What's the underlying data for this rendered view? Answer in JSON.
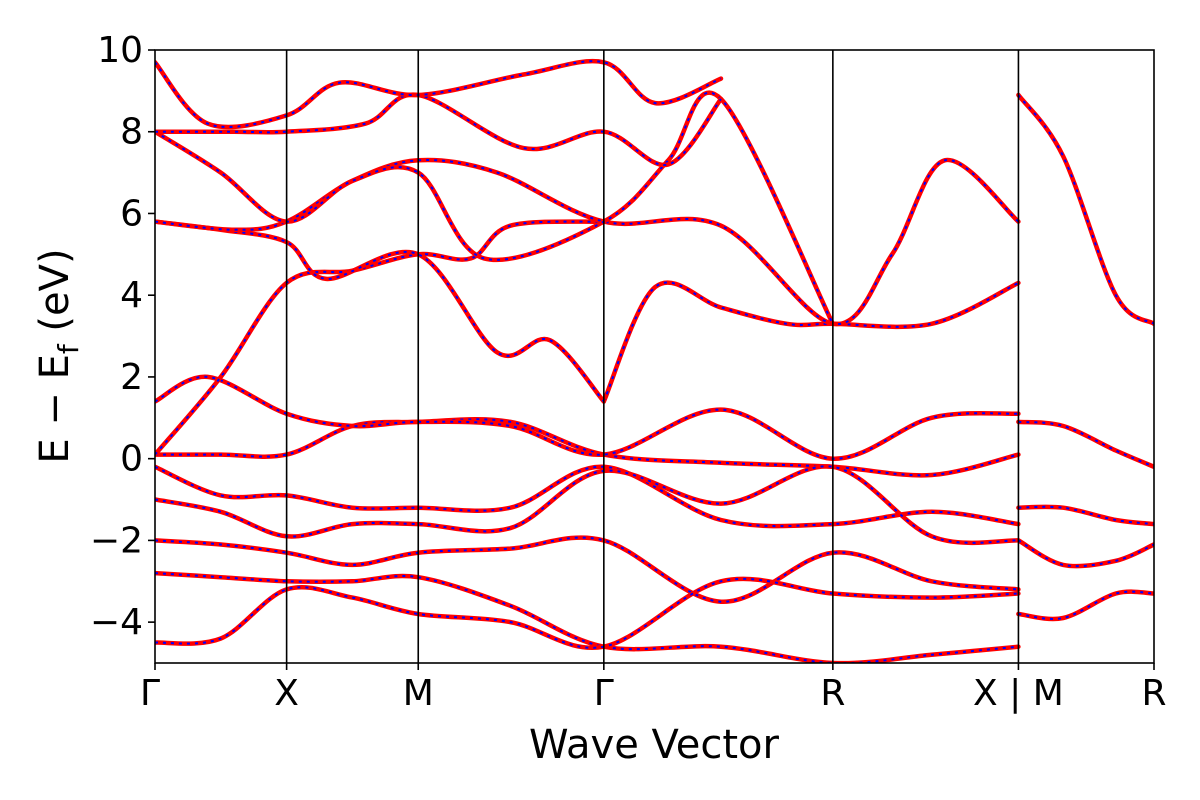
{
  "chart_data": {
    "type": "line",
    "title": "",
    "xlabel": "Wave Vector",
    "ylabel_parts": {
      "main": "E − E",
      "sub": "f",
      "unit": " (eV)"
    },
    "ylim": [
      -5,
      10
    ],
    "yticks": [
      {
        "value": -4,
        "label": "−4"
      },
      {
        "value": -2,
        "label": "−2"
      },
      {
        "value": 0,
        "label": "0"
      },
      {
        "value": 2,
        "label": "2"
      },
      {
        "value": 4,
        "label": "4"
      },
      {
        "value": 6,
        "label": "6"
      },
      {
        "value": 8,
        "label": "8"
      },
      {
        "value": 10,
        "label": "10"
      }
    ],
    "xlim": [
      0,
      7.59
    ],
    "kpoints": [
      {
        "x": 0.0,
        "label": "Γ"
      },
      {
        "x": 1.0,
        "label": "X"
      },
      {
        "x": 2.0,
        "label": "M"
      },
      {
        "x": 3.41,
        "label": "Γ"
      },
      {
        "x": 5.15,
        "label": "R"
      },
      {
        "x": 6.56,
        "label": "X | M"
      },
      {
        "x": 7.59,
        "label": "R"
      }
    ],
    "grid": false,
    "line_colors": {
      "primary": "#ff0000",
      "overlay": "#0000ff"
    },
    "series": [
      {
        "x": [
          0.0,
          0.5,
          1.0,
          1.5,
          2.0,
          2.7,
          3.41,
          4.3,
          5.15,
          5.9,
          6.56
        ],
        "y": [
          0.1,
          0.1,
          0.1,
          0.8,
          0.9,
          0.9,
          0.1,
          -0.1,
          -0.2,
          -0.4,
          0.1
        ]
      },
      {
        "x": [
          0.0,
          0.4,
          1.0,
          1.5,
          2.0,
          2.7,
          3.41,
          4.3,
          5.15,
          5.9,
          6.56
        ],
        "y": [
          1.4,
          2.0,
          1.1,
          0.8,
          0.9,
          0.8,
          0.1,
          1.2,
          0.0,
          1.0,
          1.1
        ]
      },
      {
        "x": [
          0.0,
          0.5,
          1.0,
          1.5,
          2.0,
          2.4,
          2.7,
          3.41
        ],
        "y": [
          0.1,
          2.0,
          4.3,
          4.6,
          5.0,
          4.9,
          5.7,
          5.8
        ]
      },
      {
        "x": [
          3.41,
          3.8,
          4.3,
          4.8,
          5.15,
          5.9,
          6.56
        ],
        "y": [
          1.4,
          4.2,
          3.7,
          3.3,
          3.3,
          3.3,
          4.3
        ]
      },
      {
        "x": [
          0.0,
          0.5,
          1.0,
          1.3,
          2.0,
          2.6,
          3.0,
          3.41
        ],
        "y": [
          5.8,
          5.6,
          5.3,
          4.4,
          5.0,
          2.6,
          2.9,
          1.4
        ]
      },
      {
        "x": [
          0.0,
          0.6,
          1.0,
          1.5,
          2.0,
          2.6,
          3.41,
          4.3,
          5.15,
          5.6,
          6.0,
          6.56
        ],
        "y": [
          5.8,
          5.6,
          5.8,
          6.8,
          7.3,
          7.0,
          5.8,
          5.7,
          3.3,
          5.0,
          7.3,
          5.8
        ]
      },
      {
        "x": [
          0.0,
          0.5,
          1.0,
          1.5,
          2.0,
          2.5,
          3.41,
          3.9,
          4.3,
          5.15
        ],
        "y": [
          8.0,
          7.0,
          5.8,
          6.8,
          7.0,
          4.9,
          5.8,
          7.3,
          8.8,
          3.3
        ]
      },
      {
        "x": [
          0.0,
          0.6,
          1.0,
          1.6,
          2.0,
          2.8,
          3.41,
          3.9,
          4.3
        ],
        "y": [
          8.0,
          8.0,
          8.0,
          8.2,
          8.9,
          7.6,
          8.0,
          7.2,
          8.8
        ]
      },
      {
        "x": [
          0.0,
          0.4,
          1.0,
          1.4,
          2.0,
          2.8,
          3.41,
          3.8,
          4.3
        ],
        "y": [
          9.7,
          8.2,
          8.4,
          9.2,
          8.9,
          9.4,
          9.7,
          8.7,
          9.3
        ]
      },
      {
        "x": [
          6.56,
          6.9,
          7.3,
          7.59
        ],
        "y": [
          8.9,
          7.4,
          4.0,
          3.3
        ]
      },
      {
        "x": [
          6.56,
          6.9,
          7.3,
          7.59
        ],
        "y": [
          0.9,
          0.8,
          0.2,
          -0.2
        ]
      },
      {
        "x": [
          0.0,
          0.5,
          1.0,
          1.5,
          2.0,
          2.7,
          3.41,
          4.3,
          5.15,
          5.9,
          6.56
        ],
        "y": [
          -0.2,
          -0.9,
          -0.9,
          -1.2,
          -1.2,
          -1.2,
          -0.2,
          -1.5,
          -1.6,
          -1.3,
          -1.6
        ]
      },
      {
        "x": [
          0.0,
          0.5,
          1.0,
          1.5,
          2.0,
          2.7,
          3.41,
          4.3,
          5.15,
          5.9,
          6.56
        ],
        "y": [
          -1.0,
          -1.3,
          -1.9,
          -1.6,
          -1.6,
          -1.7,
          -0.3,
          -1.1,
          -0.2,
          -1.9,
          -2.0
        ]
      },
      {
        "x": [
          0.0,
          0.5,
          1.0,
          1.5,
          2.0,
          2.7,
          3.41,
          4.3,
          5.15,
          5.9,
          6.56
        ],
        "y": [
          -2.0,
          -2.1,
          -2.3,
          -2.6,
          -2.3,
          -2.2,
          -2.0,
          -3.5,
          -2.3,
          -3.0,
          -3.2
        ]
      },
      {
        "x": [
          0.0,
          0.5,
          1.0,
          1.5,
          2.0,
          2.7,
          3.41,
          4.3,
          5.15,
          5.9,
          6.56
        ],
        "y": [
          -2.8,
          -2.9,
          -3.0,
          -3.0,
          -2.9,
          -3.6,
          -4.6,
          -4.6,
          -5.0,
          -4.8,
          -4.6
        ]
      },
      {
        "x": [
          0.0,
          0.5,
          1.0,
          1.5,
          2.0,
          2.7,
          3.41,
          4.3,
          5.15,
          5.9,
          6.56
        ],
        "y": [
          -4.5,
          -4.4,
          -3.2,
          -3.4,
          -3.8,
          -4.0,
          -4.6,
          -3.0,
          -3.3,
          -3.4,
          -3.3
        ]
      },
      {
        "x": [
          6.56,
          6.9,
          7.3,
          7.59
        ],
        "y": [
          -1.2,
          -1.2,
          -1.5,
          -1.6
        ]
      },
      {
        "x": [
          6.56,
          6.9,
          7.3,
          7.59
        ],
        "y": [
          -2.0,
          -2.6,
          -2.5,
          -2.1
        ]
      },
      {
        "x": [
          6.56,
          6.9,
          7.3,
          7.59
        ],
        "y": [
          -3.8,
          -3.9,
          -3.3,
          -3.3
        ]
      }
    ]
  }
}
